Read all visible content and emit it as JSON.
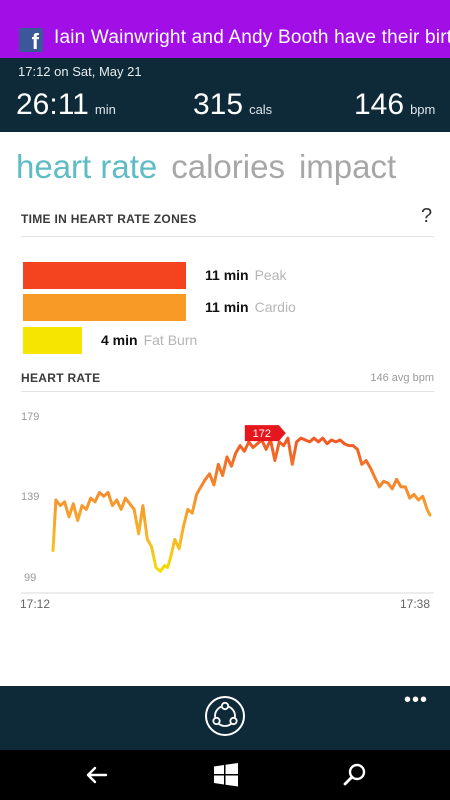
{
  "notification": {
    "app_icon": "facebook-icon",
    "text": "Iain Wainwright and Andy Booth have their birthd"
  },
  "summary": {
    "datetime": "17:12 on Sat, May 21",
    "duration": {
      "value": "26:11",
      "unit": "min"
    },
    "calories": {
      "value": "315",
      "unit": "cals"
    },
    "heart_rate": {
      "value": "146",
      "unit": "bpm"
    }
  },
  "tabs": [
    {
      "label": "heart rate",
      "active": true
    },
    {
      "label": "calories",
      "active": false
    },
    {
      "label": "impact",
      "active": false
    }
  ],
  "zones": {
    "title": "TIME IN HEART RATE ZONES",
    "help": "?",
    "items": [
      {
        "minutes": "11 min",
        "name": "Peak",
        "color": "#f4431f",
        "value": 11
      },
      {
        "minutes": "11 min",
        "name": "Cardio",
        "color": "#f89a26",
        "value": 11
      },
      {
        "minutes": "4 min",
        "name": "Fat Burn",
        "color": "#f5e500",
        "value": 4
      }
    ]
  },
  "heart_rate_chart": {
    "title": "HEART RATE",
    "avg_label": "146 avg bpm",
    "peak_label": "172",
    "y_ticks": [
      "179",
      "139",
      "99"
    ],
    "x_start": "17:12",
    "x_end": "17:38"
  },
  "chart_data": {
    "type": "line",
    "title": "HEART RATE",
    "xlabel": "",
    "ylabel": "",
    "ylim": [
      99,
      179
    ],
    "xlim": [
      "17:12",
      "17:38"
    ],
    "x_tick_labels": [
      "17:12",
      "17:38"
    ],
    "y_tick_labels": [
      "179",
      "139",
      "99"
    ],
    "annotation": {
      "label": "172",
      "x_min": 14.4,
      "y": 172
    },
    "series": [
      {
        "x_min": [
          0.0,
          0.2,
          0.5,
          0.8,
          1.1,
          1.4,
          1.7,
          2.0,
          2.3,
          2.6,
          2.9,
          3.2,
          3.5,
          3.8,
          4.1,
          4.4,
          4.7,
          5.0,
          5.3,
          5.6,
          5.9,
          6.2,
          6.5,
          6.8,
          7.1,
          7.4,
          7.7,
          7.9,
          8.1,
          8.4,
          8.7,
          9.0,
          9.3,
          9.6,
          9.9,
          10.2,
          10.5,
          10.8,
          11.1,
          11.4,
          11.7,
          12.0,
          12.3,
          12.6,
          12.9,
          13.2,
          13.5,
          13.8,
          14.1,
          14.4,
          14.7,
          15.0,
          15.3,
          15.6,
          15.9,
          16.2,
          16.5,
          16.8,
          17.1,
          17.4,
          17.7,
          18.0,
          18.3,
          18.6,
          18.9,
          19.2,
          19.5,
          19.8,
          20.1,
          20.4,
          20.7,
          21.0,
          21.3,
          21.6,
          21.9,
          22.2,
          22.5,
          22.8,
          23.1,
          23.4,
          23.7,
          24.0,
          24.3,
          24.6,
          24.9,
          25.2,
          25.5,
          25.8,
          26.0
        ],
        "bpm": [
          112,
          139,
          136,
          138,
          130,
          137,
          128,
          136,
          134,
          140,
          138,
          143,
          141,
          143,
          136,
          139,
          134,
          140,
          137,
          134,
          121,
          136,
          118,
          114,
          103,
          101,
          104,
          103,
          108,
          118,
          113,
          125,
          134,
          132,
          142,
          146,
          150,
          153,
          147,
          158,
          152,
          162,
          157,
          164,
          168,
          165,
          170,
          167,
          169,
          171,
          166,
          171,
          160,
          170,
          168,
          172,
          158,
          170,
          172,
          171,
          170,
          172,
          170,
          172,
          169,
          171,
          170,
          171,
          169,
          168,
          168,
          166,
          158,
          160,
          156,
          151,
          146,
          149,
          148,
          145,
          150,
          146,
          146,
          140,
          142,
          139,
          141,
          134,
          131
        ]
      }
    ]
  },
  "app_bar": {
    "share_icon": "share-icon",
    "more_label": "•••"
  },
  "nav_bar": {
    "back_icon": "back-arrow-icon",
    "start_icon": "windows-logo-icon",
    "search_icon": "search-icon"
  }
}
